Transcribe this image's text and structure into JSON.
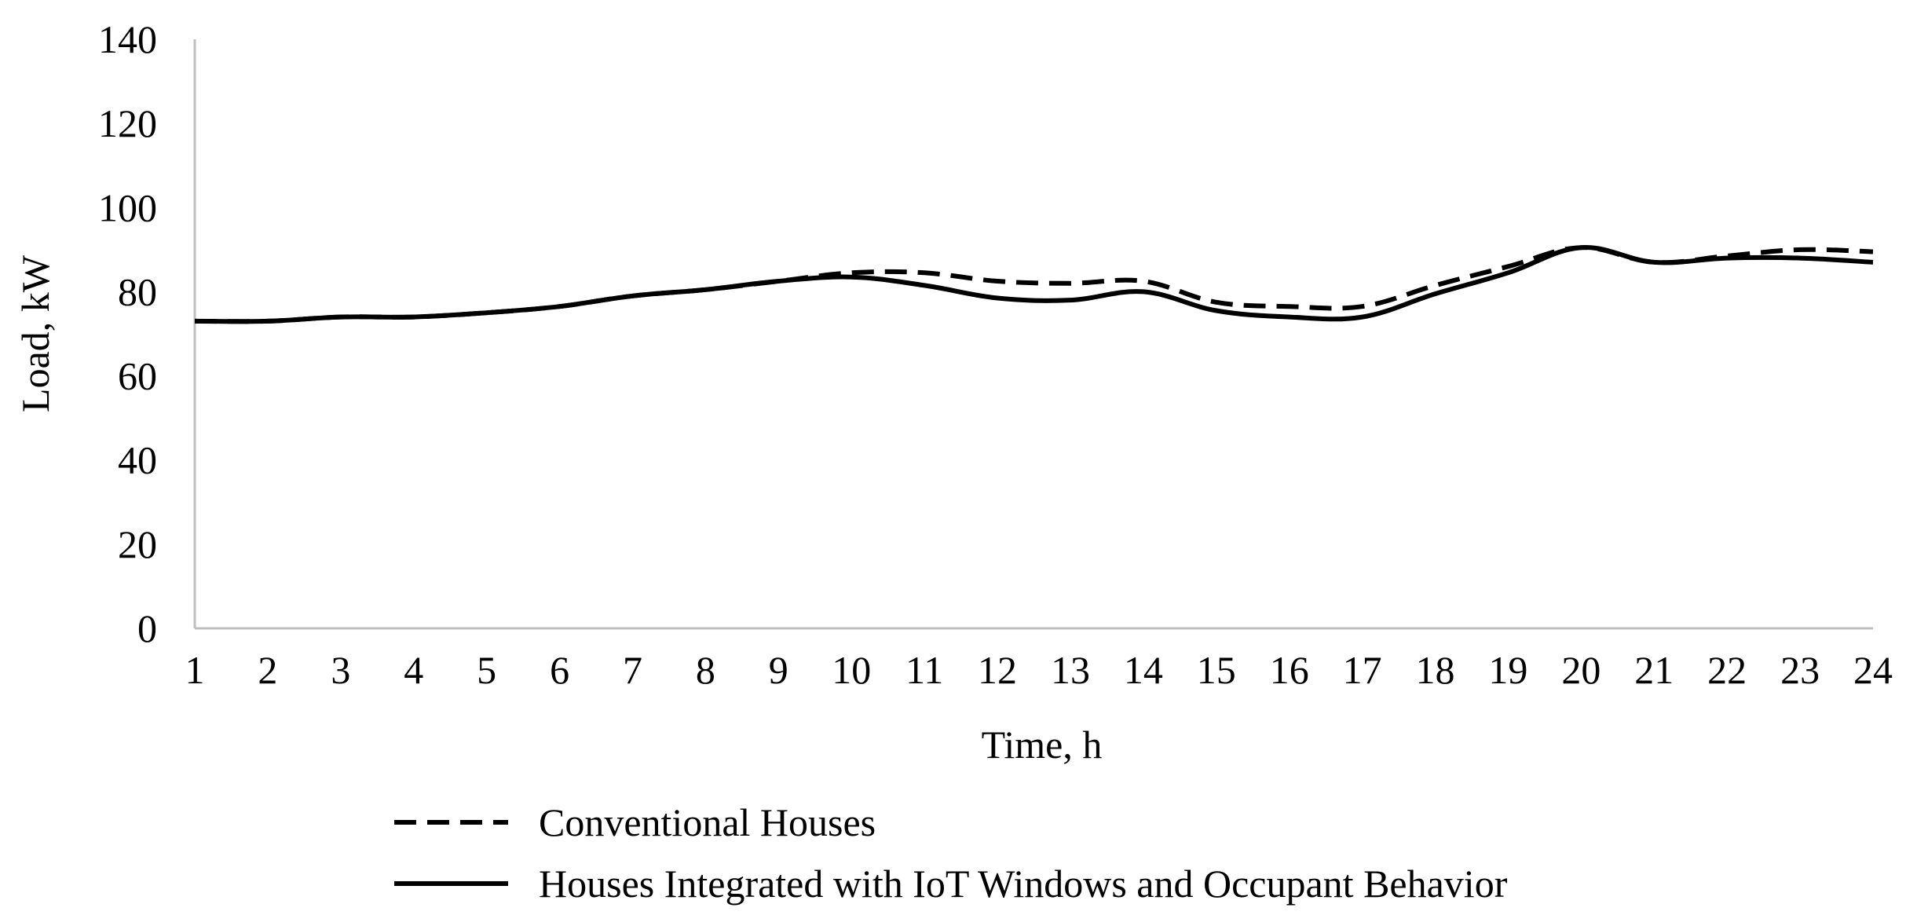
{
  "chart_data": {
    "type": "line",
    "title": "",
    "xlabel": "Time, h",
    "ylabel": "Load, kW",
    "categories": [
      "1",
      "2",
      "3",
      "4",
      "5",
      "6",
      "7",
      "8",
      "9",
      "10",
      "11",
      "12",
      "13",
      "14",
      "15",
      "16",
      "17",
      "18",
      "19",
      "20",
      "21",
      "22",
      "23",
      "24"
    ],
    "yticks": [
      "0",
      "20",
      "40",
      "60",
      "80",
      "100",
      "120",
      "140"
    ],
    "ylim": [
      0,
      140
    ],
    "grid": false,
    "legend_position": "bottom",
    "series": [
      {
        "name": "Conventional Houses",
        "style": "dashed",
        "color": "#000000",
        "values": [
          73,
          73,
          74,
          74,
          75,
          76.5,
          79,
          80.5,
          82.5,
          84.5,
          84.5,
          82.5,
          82,
          82.5,
          77.5,
          76.5,
          76.5,
          81.5,
          86,
          90.5,
          87,
          88.5,
          90,
          89.5
        ]
      },
      {
        "name": "Houses Integrated with IoT Windows and Occupant Behavior",
        "style": "solid",
        "color": "#000000",
        "values": [
          73,
          73,
          74,
          74,
          75,
          76.5,
          79,
          80.5,
          82.5,
          83.5,
          81.5,
          78.5,
          78,
          80,
          75.5,
          74,
          74,
          79.5,
          84.5,
          90.5,
          87,
          88,
          88,
          87
        ]
      }
    ]
  }
}
